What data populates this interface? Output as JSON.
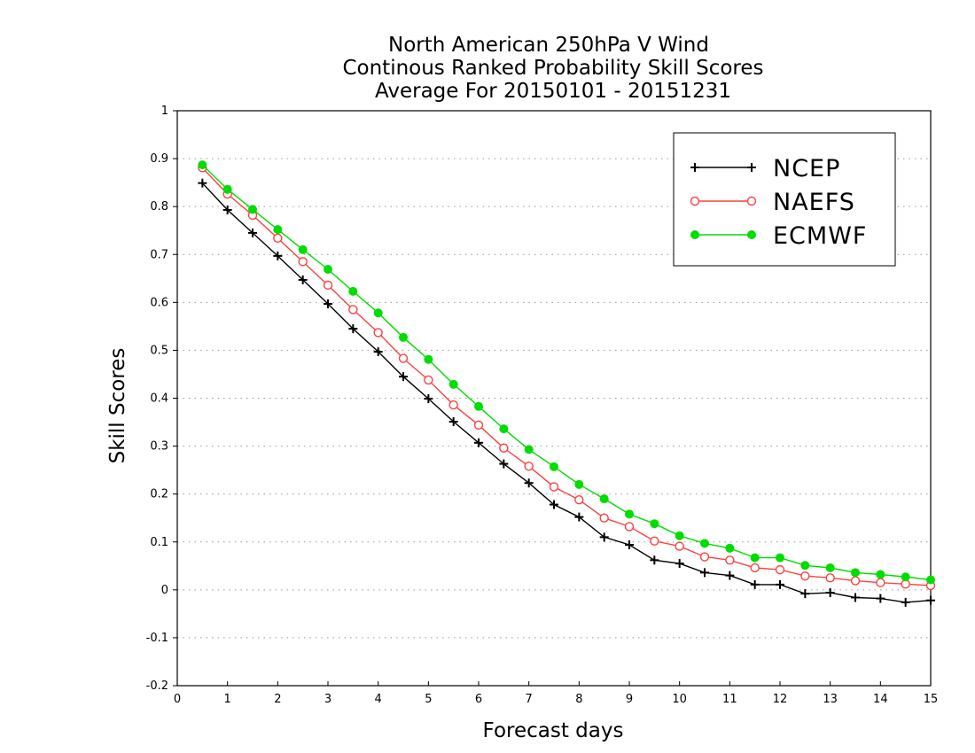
{
  "chart_data": {
    "type": "line",
    "title_lines": [
      "North American 250hPa V Wind",
      "Continous Ranked Probability Skill Scores",
      "Average For 20150101 - 20151231"
    ],
    "xlabel": "Forecast days",
    "ylabel": "Skill Scores",
    "xlim": [
      0,
      15
    ],
    "ylim": [
      -0.2,
      1
    ],
    "x_ticks": [
      "0",
      "1",
      "2",
      "3",
      "4",
      "5",
      "6",
      "7",
      "8",
      "9",
      "10",
      "11",
      "12",
      "13",
      "14",
      "15"
    ],
    "y_ticks": [
      "-0.2",
      "-0.1",
      "0",
      "0.1",
      "0.2",
      "0.3",
      "0.4",
      "0.5",
      "0.6",
      "0.7",
      "0.8",
      "0.9",
      "1"
    ],
    "grid": true,
    "legend_position": "top-right",
    "x": [
      0.5,
      1,
      1.5,
      2,
      2.5,
      3,
      3.5,
      4,
      4.5,
      5,
      5.5,
      6,
      6.5,
      7,
      7.5,
      8,
      8.5,
      9,
      9.5,
      10,
      10.5,
      11,
      11.5,
      12,
      12.5,
      13,
      13.5,
      14,
      14.5,
      15
    ],
    "series": [
      {
        "name": "NCEP",
        "color": "#000000",
        "marker": "plus",
        "values": [
          0.849,
          0.793,
          0.745,
          0.697,
          0.647,
          0.597,
          0.545,
          0.497,
          0.445,
          0.399,
          0.351,
          0.307,
          0.263,
          0.223,
          0.178,
          0.152,
          0.11,
          0.094,
          0.062,
          0.055,
          0.036,
          0.03,
          0.011,
          0.011,
          -0.008,
          -0.006,
          -0.016,
          -0.018,
          -0.026,
          -0.022
        ]
      },
      {
        "name": "NAEFS",
        "color": "#ff4040",
        "marker": "open-circle",
        "values": [
          0.881,
          0.826,
          0.782,
          0.734,
          0.685,
          0.636,
          0.585,
          0.537,
          0.483,
          0.438,
          0.386,
          0.344,
          0.296,
          0.258,
          0.215,
          0.188,
          0.15,
          0.132,
          0.102,
          0.091,
          0.069,
          0.062,
          0.046,
          0.042,
          0.029,
          0.025,
          0.019,
          0.015,
          0.012,
          0.009
        ]
      },
      {
        "name": "ECMWF",
        "color": "#00dd00",
        "marker": "filled-circle",
        "values": [
          0.887,
          0.836,
          0.794,
          0.752,
          0.71,
          0.669,
          0.623,
          0.578,
          0.527,
          0.481,
          0.429,
          0.383,
          0.336,
          0.293,
          0.257,
          0.22,
          0.19,
          0.158,
          0.138,
          0.113,
          0.097,
          0.087,
          0.067,
          0.067,
          0.051,
          0.046,
          0.036,
          0.032,
          0.027,
          0.021
        ]
      }
    ]
  }
}
